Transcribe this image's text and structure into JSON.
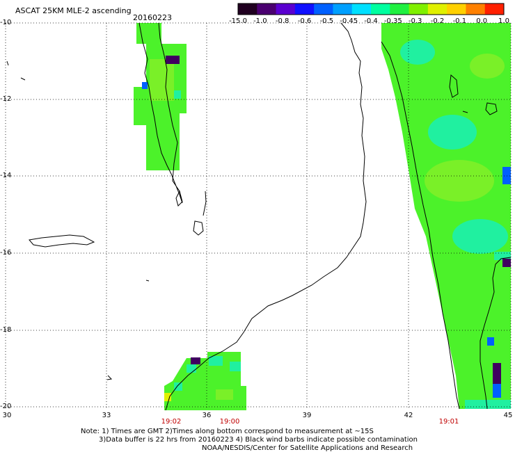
{
  "header": {
    "title": "ASCAT 25KM MLE-2 ascending",
    "date": "20160223"
  },
  "colorbar": {
    "labels": [
      "-15.0",
      "-1.0",
      "-0.8",
      "-0.6",
      "-0.5",
      "-0.45",
      "-0.4",
      "-0.35",
      "-0.3",
      "-0.2",
      "-0.1",
      "0.0",
      "1.0"
    ],
    "colors": [
      "#200020",
      "#4a0070",
      "#5a00d0",
      "#1010ff",
      "#0060ff",
      "#00a0ff",
      "#00e0ff",
      "#00ffa0",
      "#20f040",
      "#80f000",
      "#e0f000",
      "#ffd000",
      "#ff8000",
      "#ff2000"
    ]
  },
  "axes": {
    "y_labels": [
      "-10",
      "-12",
      "-14",
      "-16",
      "-18",
      "-20"
    ],
    "x_labels": [
      "30",
      "33",
      "36",
      "39",
      "42",
      "45"
    ]
  },
  "time_labels": [
    "19:02",
    "19:00",
    "19:01"
  ],
  "notes": {
    "line1": "Note: 1) Times are GMT 2)Times along bottom correspond to measurement at ~15S",
    "line2": "3)Data buffer is 22 hrs from 20160223 4) Black wind barbs indicate possible contamination",
    "line3": "NOAA/NESDIS/Center for Satellite Applications and Research"
  },
  "map_colors": {
    "green": "#4cf22a",
    "light_green": "#7af028",
    "cyan": "#20f0a0",
    "blue": "#0060ff",
    "dark": "#400060",
    "coast": "#000000",
    "grid": "#000000"
  }
}
